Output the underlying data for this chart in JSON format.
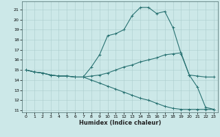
{
  "xlabel": "Humidex (Indice chaleur)",
  "bg_color": "#cce8e8",
  "line_color": "#267070",
  "grid_color": "#aacccc",
  "xlim": [
    -0.5,
    23.5
  ],
  "ylim": [
    10.8,
    21.8
  ],
  "yticks": [
    11,
    12,
    13,
    14,
    15,
    16,
    17,
    18,
    19,
    20,
    21
  ],
  "xticks": [
    0,
    1,
    2,
    3,
    4,
    5,
    6,
    7,
    8,
    9,
    10,
    11,
    12,
    13,
    14,
    15,
    16,
    17,
    18,
    19,
    20,
    21,
    22,
    23
  ],
  "line1_x": [
    0,
    1,
    2,
    3,
    4,
    5,
    6,
    7,
    8,
    9,
    10,
    11,
    12,
    13,
    14,
    15,
    16,
    17,
    18,
    19,
    20,
    21,
    22,
    23
  ],
  "line1_y": [
    15.0,
    14.8,
    14.7,
    14.5,
    14.4,
    14.4,
    14.3,
    14.3,
    15.3,
    16.5,
    18.4,
    18.6,
    19.0,
    20.4,
    21.2,
    21.2,
    20.6,
    20.8,
    19.2,
    16.6,
    14.5,
    13.3,
    11.3,
    11.1
  ],
  "line2_x": [
    0,
    1,
    2,
    3,
    4,
    5,
    6,
    7,
    8,
    9,
    10,
    11,
    12,
    13,
    14,
    15,
    16,
    17,
    18,
    19,
    20,
    21,
    22,
    23
  ],
  "line2_y": [
    15.0,
    14.8,
    14.7,
    14.5,
    14.4,
    14.4,
    14.3,
    14.3,
    14.4,
    14.5,
    14.7,
    15.0,
    15.3,
    15.5,
    15.8,
    16.0,
    16.2,
    16.5,
    16.6,
    16.7,
    14.5,
    14.4,
    14.3,
    14.3
  ],
  "line3_x": [
    0,
    1,
    2,
    3,
    4,
    5,
    6,
    7,
    8,
    9,
    10,
    11,
    12,
    13,
    14,
    15,
    16,
    17,
    18,
    19,
    20,
    21,
    22,
    23
  ],
  "line3_y": [
    15.0,
    14.8,
    14.7,
    14.5,
    14.4,
    14.4,
    14.3,
    14.3,
    14.0,
    13.7,
    13.4,
    13.1,
    12.8,
    12.5,
    12.2,
    12.0,
    11.7,
    11.4,
    11.2,
    11.1,
    11.1,
    11.1,
    11.1,
    11.1
  ],
  "xlabel_fontsize": 6,
  "tick_fontsize": 4.5,
  "linewidth": 0.8,
  "markersize": 2.5
}
